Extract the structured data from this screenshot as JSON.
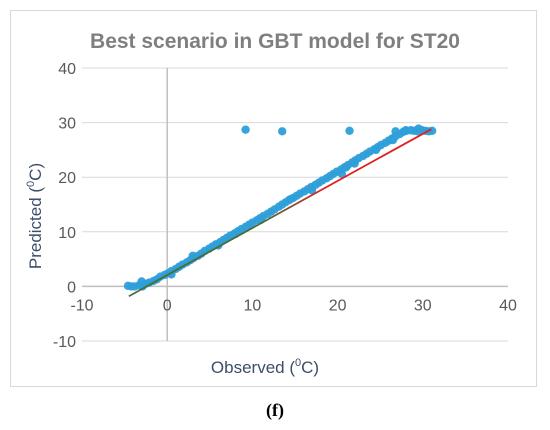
{
  "chart_data": {
    "type": "scatter",
    "title": "Best scenario in GBT model for ST20",
    "xlabel": {
      "main": "Observed (",
      "sup": "0",
      "tail": "C)"
    },
    "ylabel": {
      "main": "Predicted  (",
      "sup": "0",
      "tail": "C)"
    },
    "xlim": [
      -10,
      40
    ],
    "ylim": [
      -10,
      40
    ],
    "xticks": [
      "-10",
      "0",
      "10",
      "20",
      "30",
      "40"
    ],
    "yticks": [
      "-10",
      "0",
      "10",
      "20",
      "30",
      "40"
    ],
    "grid": "horizontal",
    "legend": "none",
    "colors": {
      "points": "#2e9fd9",
      "fit_low": "#4a6b3a",
      "fit_high": "#e02020",
      "axis_zero": "#bfbfbf",
      "grid": "#d9d9d9"
    },
    "series": [
      {
        "x": [
          -4.6,
          -4.2,
          -3.8,
          -3.3,
          -2.9,
          -2.5,
          -2.1,
          -1.6,
          -1.2,
          -0.8,
          -0.3,
          0.1,
          0.5,
          1.0,
          1.4,
          1.8,
          2.3,
          2.7,
          3.1,
          3.6,
          4.0,
          4.4,
          4.9,
          5.3,
          5.7,
          6.2,
          6.6,
          7.0,
          7.4,
          7.9,
          8.3,
          8.7,
          9.2,
          9.6,
          10.0,
          10.5,
          10.9,
          11.3,
          11.8,
          12.2,
          12.6,
          13.1,
          13.5,
          13.9,
          14.3,
          14.8,
          15.2,
          15.6,
          16.1,
          16.5,
          16.9,
          17.4,
          17.8,
          18.2,
          18.7,
          19.1,
          19.5,
          19.9,
          20.4,
          20.8,
          21.2,
          21.7,
          22.1,
          22.5,
          23.0,
          23.4,
          23.8,
          24.3,
          24.7,
          25.1,
          25.6,
          26.0,
          26.4,
          26.8,
          27.3,
          27.7,
          28.1,
          28.6,
          29.0,
          29.4,
          29.9,
          30.3,
          30.7,
          31.1,
          -3.0,
          0.5,
          3.0,
          6.0,
          8.0,
          11.0,
          14.5,
          17.0,
          20.5,
          22.0,
          24.5,
          26.5,
          28.0,
          29.5,
          21.0,
          26.8,
          9.2,
          13.5,
          21.4
        ],
        "y": [
          0.1,
          0.0,
          0.0,
          0.2,
          0.0,
          0.5,
          0.7,
          1.0,
          1.3,
          1.8,
          2.1,
          2.4,
          2.8,
          3.2,
          3.6,
          4.0,
          4.4,
          4.8,
          5.2,
          5.6,
          6.0,
          6.5,
          6.9,
          7.3,
          7.7,
          8.1,
          8.5,
          8.9,
          9.3,
          9.7,
          10.1,
          10.5,
          10.9,
          11.3,
          11.7,
          12.1,
          12.5,
          12.9,
          13.3,
          13.7,
          14.1,
          14.6,
          15.0,
          15.4,
          15.8,
          16.2,
          16.6,
          17.0,
          17.4,
          17.8,
          18.2,
          18.6,
          19.0,
          19.4,
          19.8,
          20.2,
          20.6,
          21.0,
          21.4,
          21.8,
          22.2,
          22.7,
          23.1,
          23.5,
          23.9,
          24.3,
          24.7,
          25.1,
          25.5,
          25.9,
          26.3,
          26.7,
          27.1,
          27.5,
          27.9,
          28.3,
          28.5,
          28.6,
          28.5,
          28.4,
          28.6,
          28.5,
          28.4,
          28.5,
          0.9,
          2.2,
          5.6,
          7.5,
          9.6,
          12.2,
          16.0,
          17.6,
          20.6,
          22.5,
          25.0,
          26.8,
          28.6,
          28.9,
          21.8,
          28.4,
          28.7,
          28.4,
          28.5
        ]
      }
    ],
    "fit_line": {
      "x": [
        -4.5,
        31.0
      ],
      "y": [
        -1.8,
        28.8
      ]
    }
  },
  "panel_label": "(f)"
}
